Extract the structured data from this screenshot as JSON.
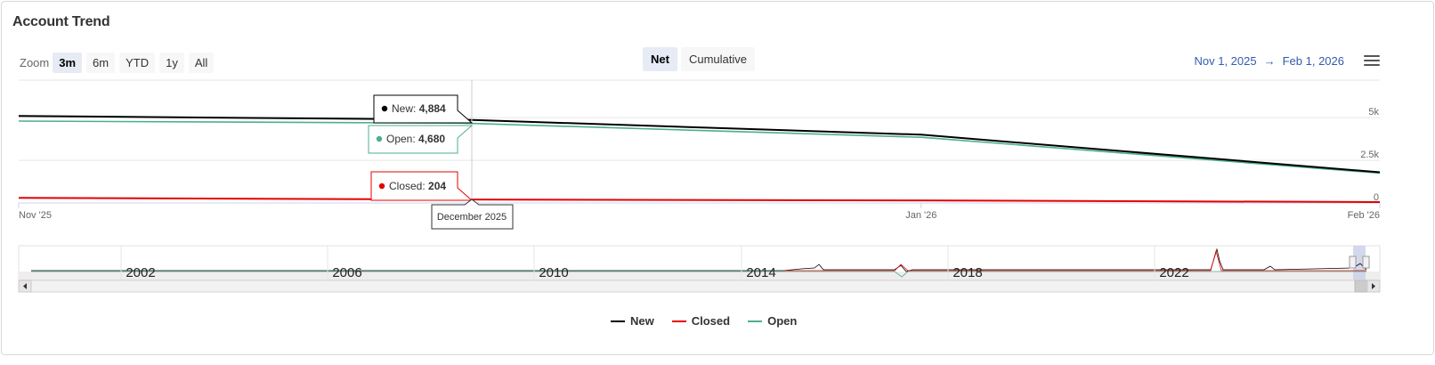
{
  "title": "Account Trend",
  "zoom": {
    "label": "Zoom",
    "options": [
      "3m",
      "6m",
      "YTD",
      "1y",
      "All"
    ],
    "selected": "3m"
  },
  "mode": {
    "options": [
      "Net",
      "Cumulative"
    ],
    "selected": "Net"
  },
  "range": {
    "from": "Nov 1, 2025",
    "arrow": "→",
    "to": "Feb 1, 2026"
  },
  "menu_icon": "hamburger-menu-icon",
  "colors": {
    "New": "#000000",
    "Closed": "#e60000",
    "Open": "#4daf8c",
    "accent": "#335cad"
  },
  "tooltip": {
    "date": "December 2025",
    "new": {
      "label": "New: ",
      "value": "4,884"
    },
    "open": {
      "label": "Open: ",
      "value": "4,680"
    },
    "closed": {
      "label": "Closed: ",
      "value": "204"
    }
  },
  "chart_data": {
    "type": "line",
    "x": [
      "2025-11-01",
      "2025-12-01",
      "2026-01-01",
      "2026-02-01"
    ],
    "x_tick_labels": [
      "Nov '25",
      "Jan '26",
      "Feb '26"
    ],
    "y_tick_labels": [
      "0",
      "2.5k",
      "5k"
    ],
    "ylim": [
      0,
      7200
    ],
    "grid": true,
    "series": [
      {
        "name": "New",
        "values": [
          5100,
          4884,
          4000,
          1800
        ]
      },
      {
        "name": "Closed",
        "values": [
          300,
          204,
          150,
          50
        ]
      },
      {
        "name": "Open",
        "values": [
          4800,
          4680,
          3850,
          1750
        ]
      }
    ],
    "navigator": {
      "year_labels": [
        "2002",
        "2006",
        "2010",
        "2014",
        "2018",
        "2022"
      ]
    },
    "legend": {
      "placement": "bottom-center",
      "entries": [
        "New",
        "Closed",
        "Open"
      ]
    }
  }
}
